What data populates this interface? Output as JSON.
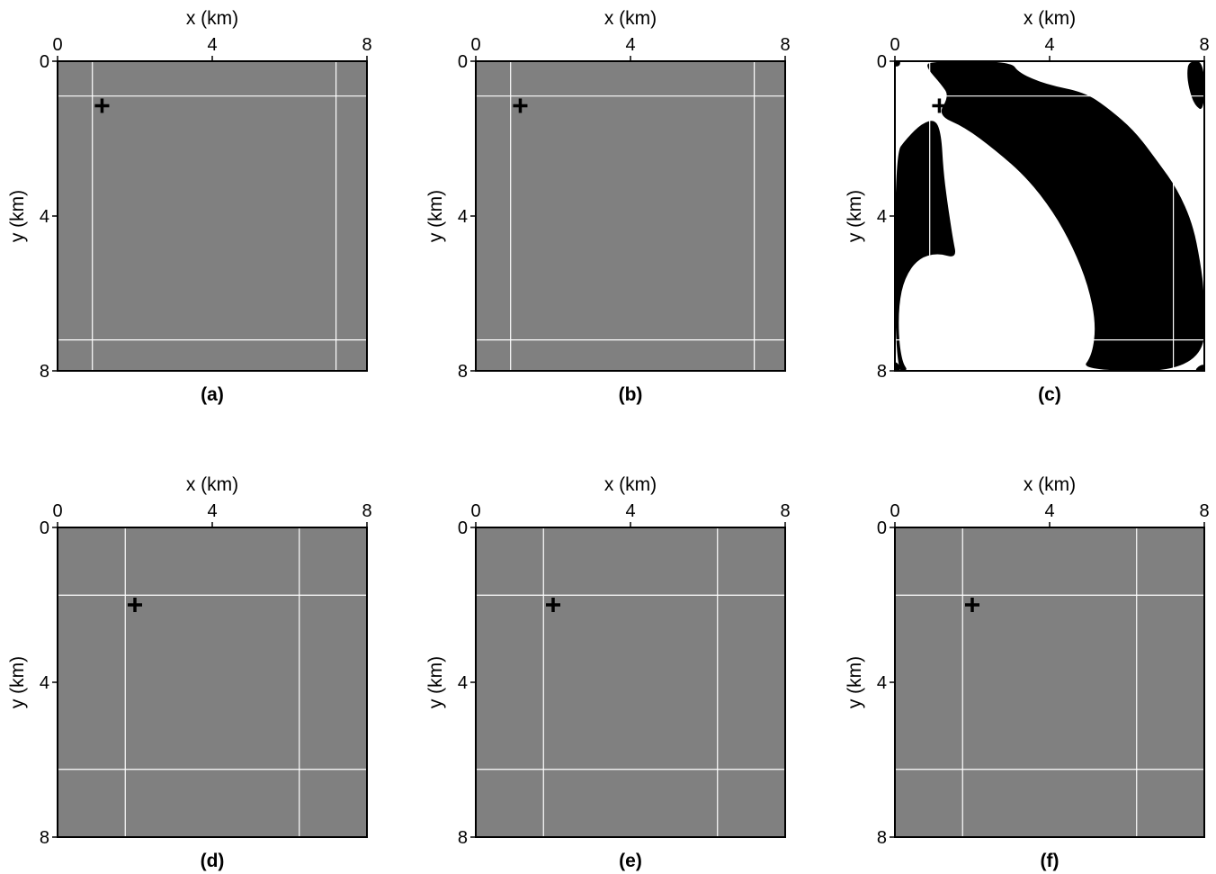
{
  "colors": {
    "gray": "#808080",
    "white": "#ffffff",
    "black": "#000000",
    "frame": "#000000"
  },
  "chart_data": [
    {
      "type": "heatmap",
      "panel": "(a)",
      "xlabel": "x (km)",
      "ylabel": "y (km)",
      "xlim": [
        0,
        8
      ],
      "ylim": [
        0,
        8
      ],
      "x_ticks": [
        "0",
        "4",
        "8"
      ],
      "y_ticks": [
        "0",
        "4",
        "8"
      ],
      "background": "gray",
      "fill_map": null,
      "grid_x": [
        0.9,
        7.2
      ],
      "grid_y": [
        0.9,
        7.2
      ],
      "source": [
        1.15,
        1.15
      ]
    },
    {
      "type": "heatmap",
      "panel": "(b)",
      "xlabel": "x (km)",
      "ylabel": "y (km)",
      "xlim": [
        0,
        8
      ],
      "ylim": [
        0,
        8
      ],
      "x_ticks": [
        "0",
        "4",
        "8"
      ],
      "y_ticks": [
        "0",
        "4",
        "8"
      ],
      "background": "gray",
      "fill_map": null,
      "grid_x": [
        0.9,
        7.2
      ],
      "grid_y": [
        0.9,
        7.2
      ],
      "source": [
        1.15,
        1.15
      ]
    },
    {
      "type": "heatmap",
      "panel": "(c)",
      "xlabel": "x (km)",
      "ylabel": "y (km)",
      "xlim": [
        0,
        8
      ],
      "ylim": [
        0,
        8
      ],
      "x_ticks": [
        "0",
        "4",
        "8"
      ],
      "y_ticks": [
        "0",
        "4",
        "8"
      ],
      "background": "white",
      "fill_map": "binary",
      "grid_x": [
        0.9,
        7.2
      ],
      "grid_y": [
        0.9,
        7.2
      ],
      "source": [
        1.15,
        1.15
      ]
    },
    {
      "type": "heatmap",
      "panel": "(d)",
      "xlabel": "x (km)",
      "ylabel": "y (km)",
      "xlim": [
        0,
        8
      ],
      "ylim": [
        0,
        8
      ],
      "x_ticks": [
        "0",
        "4",
        "8"
      ],
      "y_ticks": [
        "0",
        "4",
        "8"
      ],
      "background": "gray",
      "fill_map": null,
      "grid_x": [
        1.75,
        6.25
      ],
      "grid_y": [
        1.75,
        6.25
      ],
      "source": [
        2.0,
        2.0
      ]
    },
    {
      "type": "heatmap",
      "panel": "(e)",
      "xlabel": "x (km)",
      "ylabel": "y (km)",
      "xlim": [
        0,
        8
      ],
      "ylim": [
        0,
        8
      ],
      "x_ticks": [
        "0",
        "4",
        "8"
      ],
      "y_ticks": [
        "0",
        "4",
        "8"
      ],
      "background": "gray",
      "fill_map": null,
      "grid_x": [
        1.75,
        6.25
      ],
      "grid_y": [
        1.75,
        6.25
      ],
      "source": [
        2.0,
        2.0
      ]
    },
    {
      "type": "heatmap",
      "panel": "(f)",
      "xlabel": "x (km)",
      "ylabel": "y (km)",
      "xlim": [
        0,
        8
      ],
      "ylim": [
        0,
        8
      ],
      "x_ticks": [
        "0",
        "4",
        "8"
      ],
      "y_ticks": [
        "0",
        "4",
        "8"
      ],
      "background": "gray",
      "fill_map": null,
      "grid_x": [
        1.75,
        6.25
      ],
      "grid_y": [
        1.75,
        6.25
      ],
      "source": [
        2.0,
        2.0
      ]
    }
  ]
}
